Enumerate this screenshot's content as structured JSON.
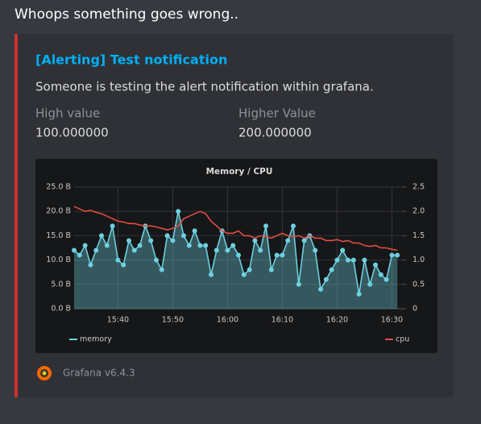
{
  "message": "Whoops something goes wrong..",
  "embed": {
    "title": "[Alerting] Test notification",
    "description": "Someone is testing the alert notification within grafana.",
    "fields": [
      {
        "name": "High value",
        "value": "100.000000"
      },
      {
        "name": "Higher Value",
        "value": "200.000000"
      }
    ],
    "footer": "Grafana v6.4.3"
  },
  "chart_data": {
    "type": "line",
    "title": "Memory / CPU",
    "x": [
      "15:32",
      "15:33",
      "15:34",
      "15:35",
      "15:36",
      "15:37",
      "15:38",
      "15:39",
      "15:40",
      "15:41",
      "15:42",
      "15:43",
      "15:44",
      "15:45",
      "15:46",
      "15:47",
      "15:48",
      "15:49",
      "15:50",
      "15:51",
      "15:52",
      "15:53",
      "15:54",
      "15:55",
      "15:56",
      "15:57",
      "15:58",
      "15:59",
      "16:00",
      "16:01",
      "16:02",
      "16:03",
      "16:04",
      "16:05",
      "16:06",
      "16:07",
      "16:08",
      "16:09",
      "16:10",
      "16:11",
      "16:12",
      "16:13",
      "16:14",
      "16:15",
      "16:16",
      "16:17",
      "16:18",
      "16:19",
      "16:20",
      "16:21",
      "16:22",
      "16:23",
      "16:24",
      "16:25",
      "16:26",
      "16:27",
      "16:28",
      "16:29",
      "16:30",
      "16:31"
    ],
    "xlim": [
      "15:32",
      "16:32"
    ],
    "xticks": [
      "15:40",
      "15:50",
      "16:00",
      "16:10",
      "16:20",
      "16:30"
    ],
    "series": [
      {
        "name": "memory",
        "color": "#6ed0e0",
        "values": [
          12,
          11,
          13,
          9,
          12,
          15,
          13,
          17,
          10,
          9,
          14,
          12,
          13,
          17,
          14,
          10,
          8,
          15,
          14,
          20,
          15,
          13,
          16,
          13,
          13,
          7,
          12,
          16,
          12,
          13,
          11,
          7,
          8,
          14,
          12,
          17,
          8,
          11,
          11,
          14,
          17,
          5,
          14,
          15,
          12,
          4,
          6,
          8,
          10,
          12,
          10,
          10,
          3,
          10,
          5,
          9,
          7,
          6,
          11,
          11
        ]
      },
      {
        "name": "cpu",
        "color": "#e24d42",
        "axis": "y2",
        "values": [
          2.1,
          2.05,
          2.0,
          2.02,
          1.98,
          1.95,
          1.9,
          1.85,
          1.8,
          1.78,
          1.75,
          1.75,
          1.72,
          1.7,
          1.7,
          1.68,
          1.65,
          1.62,
          1.65,
          1.7,
          1.85,
          1.9,
          1.95,
          2.0,
          1.95,
          1.8,
          1.7,
          1.6,
          1.55,
          1.55,
          1.6,
          1.5,
          1.5,
          1.45,
          1.5,
          1.48,
          1.45,
          1.5,
          1.55,
          1.5,
          1.48,
          1.5,
          1.45,
          1.5,
          1.45,
          1.45,
          1.4,
          1.4,
          1.42,
          1.38,
          1.4,
          1.35,
          1.35,
          1.3,
          1.28,
          1.3,
          1.25,
          1.25,
          1.22,
          1.2
        ]
      }
    ],
    "ylim": [
      0,
      25
    ],
    "yticks": [
      {
        "value": 0,
        "label": "0.0 B"
      },
      {
        "value": 5,
        "label": "5.0 B"
      },
      {
        "value": 10,
        "label": "10.0 B"
      },
      {
        "value": 15,
        "label": "15.0 B"
      },
      {
        "value": 20,
        "label": "20.0 B"
      },
      {
        "value": 25,
        "label": "25.0 B"
      }
    ],
    "y2lim": [
      0,
      2.5
    ],
    "y2ticks": [
      0,
      0.5,
      {
        "value": 1,
        "label": "1.0"
      },
      1.5,
      {
        "value": 2,
        "label": "2.0"
      },
      2.5
    ],
    "grid": true
  }
}
